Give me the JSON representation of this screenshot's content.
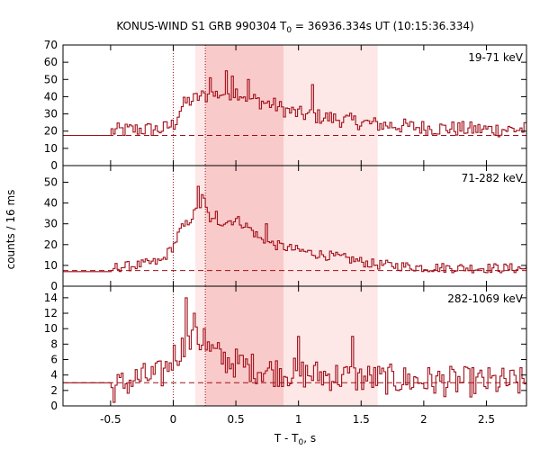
{
  "chart_data": {
    "type": "line",
    "title": "KONUS-WIND S1 GRB 990304 T",
    "title_sub": "0",
    "title_rest": " = 36936.334s UT (10:15:36.334)",
    "xlabel": "T - T",
    "xlabel_sub": "0",
    "xlabel_rest": ", s",
    "ylabel": "counts / 16 ms",
    "xlim": [
      -0.88,
      2.82
    ],
    "xticks": [
      -0.5,
      0,
      0.5,
      1,
      1.5,
      2,
      2.5
    ],
    "xtick_labels": [
      "-0.5",
      "0",
      "0.5",
      "1",
      "1.5",
      "2",
      "2.5"
    ],
    "bin_width": 0.016,
    "colors": {
      "curve": "#a0101a",
      "shade_light": "#fde7e7",
      "shade_dark": "#f9caca",
      "frame": "#000000"
    },
    "shaded_intervals": [
      {
        "from": 0.176,
        "to": 1.632,
        "shade": "light"
      },
      {
        "from": 0.256,
        "to": 0.88,
        "shade": "dark"
      }
    ],
    "marker_lines": [
      0.0,
      0.256
    ],
    "panels": [
      {
        "label": "19-71 keV",
        "ylim": [
          0,
          70
        ],
        "yticks": [
          0,
          10,
          20,
          30,
          40,
          50,
          60,
          70
        ],
        "background": 17.5,
        "profile": [
          [
            -0.88,
            17.5
          ],
          [
            -0.5,
            17.5
          ],
          [
            -0.5,
            20
          ],
          [
            -0.3,
            21
          ],
          [
            -0.1,
            21
          ],
          [
            0.0,
            24
          ],
          [
            0.05,
            33
          ],
          [
            0.1,
            37
          ],
          [
            0.15,
            38
          ],
          [
            0.2,
            40
          ],
          [
            0.3,
            41
          ],
          [
            0.4,
            42
          ],
          [
            0.5,
            43
          ],
          [
            0.6,
            39
          ],
          [
            0.7,
            37
          ],
          [
            0.8,
            35
          ],
          [
            0.9,
            32
          ],
          [
            1.0,
            30
          ],
          [
            1.2,
            28
          ],
          [
            1.4,
            26
          ],
          [
            1.6,
            24
          ],
          [
            1.8,
            23
          ],
          [
            2.0,
            22
          ],
          [
            2.4,
            21
          ],
          [
            2.82,
            21
          ]
        ],
        "noise": 4.5,
        "spikes": [
          [
            0.42,
            55
          ],
          [
            0.47,
            52
          ],
          [
            0.29,
            51
          ],
          [
            1.11,
            47
          ],
          [
            0.6,
            50
          ]
        ]
      },
      {
        "label": "71-282 keV",
        "ylim": [
          0,
          58
        ],
        "yticks": [
          0,
          10,
          20,
          30,
          40,
          50
        ],
        "background": 7.5,
        "profile": [
          [
            -0.88,
            7.0
          ],
          [
            -0.48,
            7.0
          ],
          [
            -0.48,
            9
          ],
          [
            -0.3,
            10
          ],
          [
            -0.1,
            12
          ],
          [
            0.0,
            20
          ],
          [
            0.05,
            27
          ],
          [
            0.1,
            30
          ],
          [
            0.15,
            34
          ],
          [
            0.2,
            38
          ],
          [
            0.24,
            41
          ],
          [
            0.26,
            36
          ],
          [
            0.3,
            31
          ],
          [
            0.4,
            31
          ],
          [
            0.5,
            32
          ],
          [
            0.6,
            28
          ],
          [
            0.7,
            22
          ],
          [
            0.8,
            20
          ],
          [
            1.0,
            17
          ],
          [
            1.2,
            15
          ],
          [
            1.4,
            13
          ],
          [
            1.6,
            10.5
          ],
          [
            2.0,
            9
          ],
          [
            2.82,
            8.5
          ]
        ],
        "noise": 2.4,
        "spikes": [
          [
            0.19,
            48
          ],
          [
            0.22,
            44
          ],
          [
            0.34,
            36
          ],
          [
            0.73,
            30
          ]
        ]
      },
      {
        "label": "282-1069 keV",
        "ylim": [
          0,
          15.5
        ],
        "yticks": [
          0,
          2,
          4,
          6,
          8,
          10,
          12,
          14
        ],
        "background": 3.0,
        "profile": [
          [
            -0.88,
            3.0
          ],
          [
            -0.5,
            3.0
          ],
          [
            -0.5,
            2.2
          ],
          [
            -0.3,
            3.5
          ],
          [
            -0.1,
            4.0
          ],
          [
            0.0,
            6.5
          ],
          [
            0.1,
            8
          ],
          [
            0.2,
            8.5
          ],
          [
            0.3,
            7
          ],
          [
            0.4,
            6
          ],
          [
            0.6,
            5
          ],
          [
            0.8,
            4.5
          ],
          [
            1.0,
            4.2
          ],
          [
            1.5,
            3.6
          ],
          [
            2.0,
            3.2
          ],
          [
            2.82,
            3.0
          ]
        ],
        "noise": 2.0,
        "spikes": [
          [
            0.1,
            14
          ],
          [
            0.16,
            12
          ],
          [
            0.24,
            10
          ],
          [
            1.0,
            9
          ],
          [
            1.42,
            9
          ]
        ]
      }
    ]
  }
}
